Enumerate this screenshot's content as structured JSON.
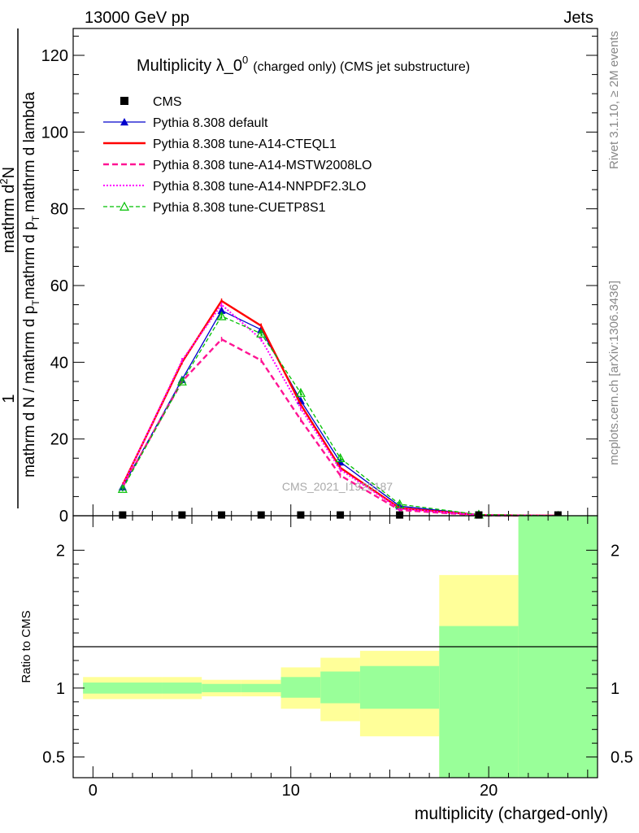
{
  "header": {
    "energy_label": "13000 GeV pp",
    "category_label": "Jets"
  },
  "side_labels": {
    "rivet": "Rivet 3.1.10, ≥ 2M events",
    "mcplots": "mcplots.cern.ch [arXiv:1306.3436]"
  },
  "watermark": "CMS_2021_I1920187",
  "colors": {
    "data": "#000000",
    "default": "#0000cc",
    "cteql1": "#ff0000",
    "mstw": "#ff1493",
    "nnpdf": "#ff00ff",
    "cuetp": "#00c000",
    "band_inner": "#99ff99",
    "band_outer": "#ffff99"
  },
  "chart_data": [
    {
      "type": "line",
      "title": "Multiplicity λ_0",
      "title_sup": "0",
      "title_suffix": "(charged only) (CMS jet substructure)",
      "ylabel_numerator_1": "1",
      "ylabel_numerator_2": "mathrm d",
      "ylabel_numerator_2_sup": "2",
      "ylabel_numerator_2_end": "N",
      "ylabel_denominator_1": "mathrm d N / mathrm d p",
      "ylabel_denominator_1_sub": "T",
      "ylabel_denominator_2": "mathrm d p",
      "ylabel_denominator_2_sub": "T",
      "ylabel_denominator_3": "mathrm d lambda",
      "xlim": [
        -1,
        25.5
      ],
      "ylim": [
        0,
        127
      ],
      "yticks": [
        0,
        20,
        40,
        60,
        80,
        100,
        120
      ],
      "ytick_labels": [
        "0",
        "20",
        "40",
        "60",
        "80",
        "100",
        "120"
      ],
      "x": [
        1.5,
        4.5,
        6.5,
        8.5,
        10.5,
        12.5,
        15.5,
        19.5,
        23.5
      ],
      "cms": {
        "name": "CMS",
        "values": [
          0.2,
          0.2,
          0.2,
          0.2,
          0.2,
          0.2,
          0.2,
          0.2,
          0.2
        ]
      },
      "series": [
        {
          "key": "default",
          "name": "Pythia 8.308 default",
          "values": [
            7.5,
            35.5,
            53.5,
            48.5,
            30.0,
            14.0,
            2.5,
            0.3,
            0.0
          ]
        },
        {
          "key": "cteql1",
          "name": "Pythia 8.308 tune-A14-CTEQL1",
          "values": [
            8.0,
            40.0,
            56.0,
            49.5,
            29.0,
            12.5,
            2.0,
            0.2,
            0.0
          ]
        },
        {
          "key": "mstw",
          "name": "Pythia 8.308 tune-A14-MSTW2008LO",
          "values": [
            7.5,
            35.0,
            46.0,
            40.5,
            25.0,
            10.5,
            1.5,
            0.1,
            0.0
          ]
        },
        {
          "key": "nnpdf",
          "name": "Pythia 8.308 tune-A14-NNPDF2.3LO",
          "values": [
            7.8,
            40.5,
            55.0,
            46.0,
            28.0,
            12.0,
            1.8,
            0.2,
            0.0
          ]
        },
        {
          "key": "cuetp",
          "name": "Pythia 8.308 tune-CUETP8S1",
          "values": [
            7.0,
            35.0,
            52.0,
            47.5,
            32.0,
            15.0,
            3.0,
            0.3,
            0.0
          ]
        }
      ]
    },
    {
      "type": "area",
      "ylabel": "Ratio to CMS",
      "xlabel": "multiplicity (charged-only)",
      "xlim": [
        -1,
        25.5
      ],
      "ylim": [
        0.35,
        2.25
      ],
      "yticks": [
        0.5,
        1,
        2
      ],
      "ytick_labels": [
        "0.5",
        "1",
        "2"
      ],
      "xticks": [
        0,
        10,
        20
      ],
      "xtick_labels": [
        "0",
        "10",
        "20"
      ],
      "bins": [
        {
          "lo": -0.5,
          "hi": 3.5,
          "inner": [
            0.96,
            1.04
          ],
          "outer": [
            0.92,
            1.08
          ]
        },
        {
          "lo": 3.5,
          "hi": 5.5,
          "inner": [
            0.96,
            1.04
          ],
          "outer": [
            0.92,
            1.08
          ]
        },
        {
          "lo": 5.5,
          "hi": 7.5,
          "inner": [
            0.97,
            1.03
          ],
          "outer": [
            0.94,
            1.06
          ]
        },
        {
          "lo": 7.5,
          "hi": 9.5,
          "inner": [
            0.97,
            1.03
          ],
          "outer": [
            0.94,
            1.06
          ]
        },
        {
          "lo": 9.5,
          "hi": 11.5,
          "inner": [
            0.93,
            1.08
          ],
          "outer": [
            0.85,
            1.15
          ]
        },
        {
          "lo": 11.5,
          "hi": 13.5,
          "inner": [
            0.89,
            1.12
          ],
          "outer": [
            0.76,
            1.22
          ]
        },
        {
          "lo": 13.5,
          "hi": 17.5,
          "inner": [
            0.85,
            1.16
          ],
          "outer": [
            0.65,
            1.27
          ]
        },
        {
          "lo": 17.5,
          "hi": 21.5,
          "inner": [
            0.35,
            1.45
          ],
          "outer": [
            0.35,
            1.82
          ]
        },
        {
          "lo": 21.5,
          "hi": 25.5,
          "inner": [
            0.35,
            2.25
          ],
          "outer": [
            0.35,
            2.25
          ]
        }
      ]
    }
  ]
}
